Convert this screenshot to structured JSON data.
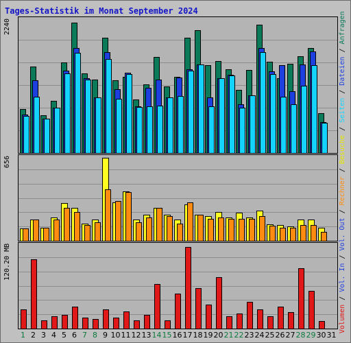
{
  "title": "Tages-Statistik im Monat September 2024",
  "colors": {
    "anfragen": "#0a7a58",
    "dateien": "#1e3fe0",
    "seiten": "#14d4ff",
    "besuche": "#ffff22",
    "rechner": "#ff8c10",
    "volumen": "#e01818",
    "weekday_label": "#000000",
    "weekend_label": "#0a7a3c",
    "grid": "#8c8c8c"
  },
  "right_label": {
    "parts": [
      {
        "text": "Volumen",
        "color": "#e01818"
      },
      {
        "text": " / ",
        "color": "#000000"
      },
      {
        "text": "Vol. In",
        "color": "#1e3fe0"
      },
      {
        "text": " / ",
        "color": "#000000"
      },
      {
        "text": "Vol. Out",
        "color": "#1e3fe0"
      },
      {
        "text": " / ",
        "color": "#000000"
      },
      {
        "text": "Rechner",
        "color": "#ff8c10"
      },
      {
        "text": " / ",
        "color": "#000000"
      },
      {
        "text": "Besuche",
        "color": "#e6e600"
      },
      {
        "text": " / ",
        "color": "#000000"
      },
      {
        "text": "Seiten",
        "color": "#14d4ff"
      },
      {
        "text": " / ",
        "color": "#000000"
      },
      {
        "text": "Dateien",
        "color": "#1e3fe0"
      },
      {
        "text": " / ",
        "color": "#000000"
      },
      {
        "text": "Anfragen",
        "color": "#0a7a58"
      }
    ]
  },
  "chart_data": [
    {
      "type": "bar",
      "ymax_label": "2240",
      "ylim": [
        0,
        2240
      ],
      "categories": [
        "1",
        "2",
        "3",
        "4",
        "5",
        "6",
        "7",
        "8",
        "9",
        "10",
        "11",
        "12",
        "13",
        "14",
        "15",
        "16",
        "17",
        "18",
        "19",
        "20",
        "21",
        "22",
        "23",
        "24",
        "25",
        "26",
        "27",
        "28",
        "29",
        "30",
        "31"
      ],
      "series": [
        {
          "name": "Anfragen",
          "values": [
            749,
            1469,
            647,
            890,
            1537,
            2218,
            1353,
            1250,
            1960,
            1240,
            1298,
            915,
            1171,
            1639,
            1134,
            1298,
            1956,
            2090,
            1498,
            1558,
            1418,
            1072,
            1413,
            2182,
            1557,
            1267,
            1512,
            1640,
            1782,
            680,
            0
          ]
        },
        {
          "name": "Dateien",
          "values": [
            649,
            1239,
            582,
            772,
            1404,
            1783,
            1267,
            945,
            1717,
            1088,
            1367,
            791,
            1112,
            1245,
            946,
            1279,
            1418,
            1508,
            944,
            1270,
            1330,
            823,
            979,
            1785,
            1385,
            1495,
            1055,
            1500,
            1730,
            530,
            0
          ]
        },
        {
          "name": "Seiten",
          "values": [
            631,
            955,
            582,
            772,
            1353,
            1708,
            1254,
            945,
            1599,
            917,
            1341,
            779,
            792,
            810,
            946,
            964,
            1400,
            1508,
            792,
            1270,
            1318,
            774,
            979,
            1710,
            1344,
            960,
            823,
            1141,
            1498,
            510,
            0
          ]
        }
      ]
    },
    {
      "type": "bar",
      "ymax_label": "656",
      "ylim": [
        0,
        656
      ],
      "categories": [
        "1",
        "2",
        "3",
        "4",
        "5",
        "6",
        "7",
        "8",
        "9",
        "10",
        "11",
        "12",
        "13",
        "14",
        "15",
        "16",
        "17",
        "18",
        "19",
        "20",
        "21",
        "22",
        "23",
        "24",
        "25",
        "26",
        "27",
        "28",
        "29",
        "30",
        "31"
      ],
      "series": [
        {
          "name": "Besuche",
          "values": [
            97,
            166,
            104,
            186,
            296,
            259,
            135,
            166,
            656,
            305,
            389,
            166,
            207,
            259,
            207,
            166,
            290,
            207,
            197,
            228,
            186,
            224,
            186,
            238,
            130,
            124,
            116,
            166,
            166,
            104,
            0
          ]
        },
        {
          "name": "Rechner",
          "values": [
            97,
            166,
            104,
            166,
            259,
            228,
            124,
            148,
            409,
            316,
            383,
            145,
            186,
            259,
            197,
            135,
            305,
            207,
            176,
            186,
            176,
            176,
            176,
            197,
            119,
            104,
            104,
            124,
            124,
            72,
            0
          ]
        }
      ]
    },
    {
      "type": "bar",
      "ymax_label": "120.20 MB",
      "ylim": [
        0,
        120.2
      ],
      "categories": [
        "1",
        "2",
        "3",
        "4",
        "5",
        "6",
        "7",
        "8",
        "9",
        "10",
        "11",
        "12",
        "13",
        "14",
        "15",
        "16",
        "17",
        "18",
        "19",
        "20",
        "21",
        "22",
        "23",
        "24",
        "25",
        "26",
        "27",
        "28",
        "29",
        "30",
        "31"
      ],
      "series": [
        {
          "name": "Volumen",
          "values": [
            27.5,
            100.5,
            12.3,
            17.8,
            19.4,
            31.3,
            16.1,
            14.2,
            27.5,
            16.1,
            24.6,
            12.3,
            19.4,
            64.4,
            12.3,
            51.1,
            118.7,
            58.7,
            35.1,
            74.9,
            17.8,
            21.6,
            38.9,
            27.5,
            17.8,
            32.2,
            23.7,
            87.8,
            54.9,
            11.4,
            0
          ]
        }
      ]
    }
  ],
  "days": [
    {
      "label": "1",
      "weekend": true
    },
    {
      "label": "2",
      "weekend": false
    },
    {
      "label": "3",
      "weekend": false
    },
    {
      "label": "4",
      "weekend": false
    },
    {
      "label": "5",
      "weekend": false
    },
    {
      "label": "6",
      "weekend": false
    },
    {
      "label": "7",
      "weekend": true
    },
    {
      "label": "8",
      "weekend": true
    },
    {
      "label": "9",
      "weekend": false
    },
    {
      "label": "10",
      "weekend": false
    },
    {
      "label": "11",
      "weekend": false
    },
    {
      "label": "12",
      "weekend": false
    },
    {
      "label": "13",
      "weekend": false
    },
    {
      "label": "14",
      "weekend": true
    },
    {
      "label": "15",
      "weekend": true
    },
    {
      "label": "16",
      "weekend": false
    },
    {
      "label": "17",
      "weekend": false
    },
    {
      "label": "18",
      "weekend": false
    },
    {
      "label": "19",
      "weekend": false
    },
    {
      "label": "20",
      "weekend": false
    },
    {
      "label": "21",
      "weekend": true
    },
    {
      "label": "22",
      "weekend": true
    },
    {
      "label": "23",
      "weekend": false
    },
    {
      "label": "24",
      "weekend": false
    },
    {
      "label": "25",
      "weekend": false
    },
    {
      "label": "26",
      "weekend": false
    },
    {
      "label": "27",
      "weekend": false
    },
    {
      "label": "28",
      "weekend": true
    },
    {
      "label": "29",
      "weekend": true
    },
    {
      "label": "30",
      "weekend": false
    },
    {
      "label": "31",
      "weekend": false
    }
  ]
}
